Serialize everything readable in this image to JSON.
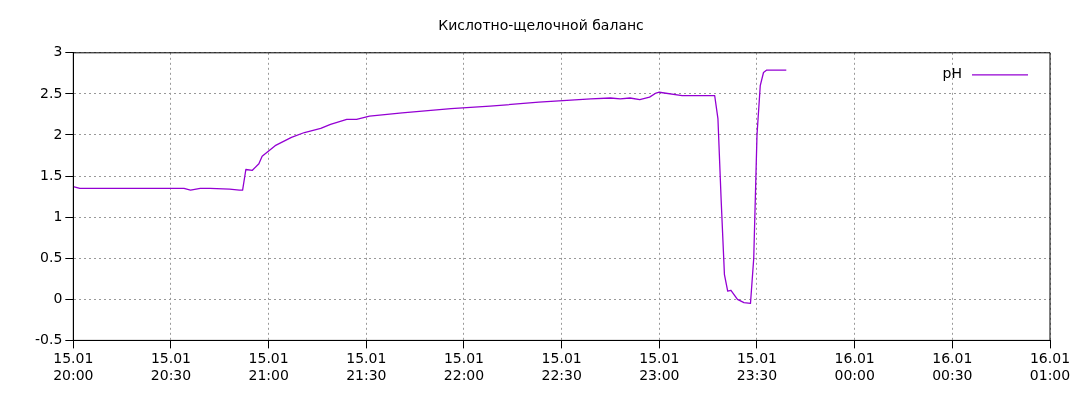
{
  "chart_data": {
    "type": "line",
    "title": "Кислотно-щелочной баланс",
    "x": [
      "--01-15T20:00",
      "--01-15T20:02",
      "--01-15T20:18",
      "--01-15T20:34",
      "--01-15T20:36",
      "--01-15T20:39",
      "--01-15T20:42",
      "--01-15T20:48",
      "--01-15T20:51",
      "--01-15T20:52",
      "--01-15T20:53",
      "--01-15T20:55",
      "--01-15T20:57",
      "--01-15T20:58",
      "--01-15T21:02",
      "--01-15T21:07",
      "--01-15T21:11",
      "--01-15T21:16",
      "--01-15T21:19",
      "--01-15T21:24",
      "--01-15T21:27",
      "--01-15T21:31",
      "--01-15T21:41",
      "--01-15T21:56",
      "--01-15T22:08",
      "--01-15T22:23",
      "--01-15T22:39",
      "--01-15T22:45",
      "--01-15T22:48",
      "--01-15T22:51",
      "--01-15T22:54",
      "--01-15T22:57",
      "--01-15T22:59",
      "--01-15T23:00",
      "--01-15T23:07",
      "--01-15T23:17",
      "--01-15T23:18",
      "--01-15T23:19",
      "--01-15T23:20",
      "--01-15T23:21",
      "--01-15T23:22",
      "--01-15T23:24",
      "--01-15T23:26",
      "--01-15T23:28",
      "--01-15T23:29",
      "--01-15T23:30",
      "--01-15T23:31",
      "--01-15T23:32",
      "--01-15T23:33",
      "--01-15T23:39"
    ],
    "series": [
      {
        "name": "pH",
        "color": "#9400d3",
        "values": [
          1.37,
          1.35,
          1.35,
          1.35,
          1.33,
          1.35,
          1.35,
          1.34,
          1.33,
          1.33,
          1.58,
          1.57,
          1.65,
          1.74,
          1.87,
          1.97,
          2.03,
          2.08,
          2.13,
          2.19,
          2.19,
          2.23,
          2.27,
          2.32,
          2.35,
          2.4,
          2.44,
          2.45,
          2.44,
          2.45,
          2.43,
          2.46,
          2.51,
          2.52,
          2.48,
          2.48,
          2.2,
          1.2,
          0.3,
          0.1,
          0.11,
          0.0,
          -0.04,
          -0.05,
          0.5,
          2.0,
          2.6,
          2.76,
          2.79,
          2.79
        ]
      }
    ],
    "xlim": [
      "--01-15T20:00",
      "--01-16T01:00"
    ],
    "xticks": [
      {
        "value": "--01-15T20:00",
        "label": "15.01\n20:00"
      },
      {
        "value": "--01-15T20:30",
        "label": "15.01\n20:30"
      },
      {
        "value": "--01-15T21:00",
        "label": "15.01\n21:00"
      },
      {
        "value": "--01-15T21:30",
        "label": "15.01\n21:30"
      },
      {
        "value": "--01-15T22:00",
        "label": "15.01\n22:00"
      },
      {
        "value": "--01-15T22:30",
        "label": "15.01\n22:30"
      },
      {
        "value": "--01-15T23:00",
        "label": "15.01\n23:00"
      },
      {
        "value": "--01-15T23:30",
        "label": "15.01\n23:30"
      },
      {
        "value": "--01-16T00:00",
        "label": "16.01\n00:00"
      },
      {
        "value": "--01-16T00:30",
        "label": "16.01\n00:30"
      },
      {
        "value": "--01-16T01:00",
        "label": "16.01\n01:00"
      }
    ],
    "ylim": [
      -0.5,
      3
    ],
    "yticks": [
      -0.5,
      0,
      0.5,
      1,
      1.5,
      2,
      2.5,
      3
    ],
    "grid": true,
    "legend": "top right",
    "marker": "none",
    "line_style": "solid"
  }
}
